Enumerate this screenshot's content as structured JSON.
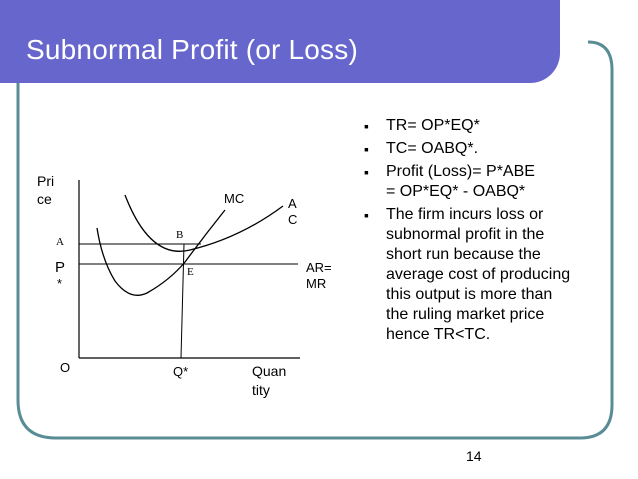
{
  "slide": {
    "title": "Subnormal Profit (or Loss)",
    "page_number": "14",
    "colors": {
      "title_bar": "#6666cc",
      "frame": "#5a8c96",
      "text": "#000000"
    }
  },
  "bullets": [
    {
      "lines": [
        "TR= OP*EQ*"
      ]
    },
    {
      "lines": [
        "TC= OABQ*."
      ]
    },
    {
      "lines": [
        "Profit (Loss)= P*ABE",
        "= OP*EQ* - OABQ*"
      ]
    },
    {
      "lines": [
        "The firm incurs loss or",
        "subnormal profit in the",
        "short run because the",
        "average cost of producing",
        "this output is more than",
        "the ruling market price",
        "hence TR<TC."
      ]
    }
  ],
  "diagram": {
    "y_axis_label": [
      "Pri",
      "ce"
    ],
    "x_axis_label": [
      "Quan",
      "tity"
    ],
    "origin_label": "O",
    "q_label": "Q*",
    "p_label": [
      "P",
      "*"
    ],
    "a_label": "A",
    "b_label": "B",
    "e_label": "E",
    "mc_label": "MC",
    "ac_label": [
      "A",
      "C"
    ],
    "ar_label": [
      "AR=",
      "MR"
    ]
  }
}
